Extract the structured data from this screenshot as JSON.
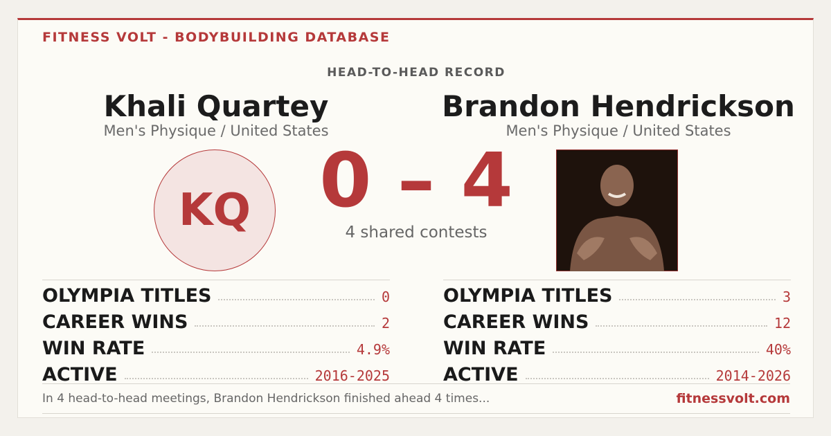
{
  "header": {
    "title": "FITNESS VOLT - BODYBUILDING DATABASE",
    "subtitle": "HEAD-TO-HEAD RECORD"
  },
  "athletes": [
    {
      "name": "Khali Quartey",
      "category": "Men's Physique / United States",
      "initials": "KQ",
      "stats": [
        {
          "label": "OLYMPIA TITLES",
          "value": "0"
        },
        {
          "label": "CAREER WINS",
          "value": "2"
        },
        {
          "label": "WIN RATE",
          "value": "4.9%"
        },
        {
          "label": "ACTIVE",
          "value": "2016-2025"
        }
      ]
    },
    {
      "name": "Brandon Hendrickson",
      "category": "Men's Physique / United States",
      "stats": [
        {
          "label": "OLYMPIA TITLES",
          "value": "3"
        },
        {
          "label": "CAREER WINS",
          "value": "12"
        },
        {
          "label": "WIN RATE",
          "value": "40%"
        },
        {
          "label": "ACTIVE",
          "value": "2014-2026"
        }
      ]
    }
  ],
  "score": "0 – 4",
  "shared": "4 shared contests",
  "footer": {
    "text": "In 4 head-to-head meetings, Brandon Hendrickson finished ahead 4 times...",
    "site": "fitnessvolt.com"
  }
}
